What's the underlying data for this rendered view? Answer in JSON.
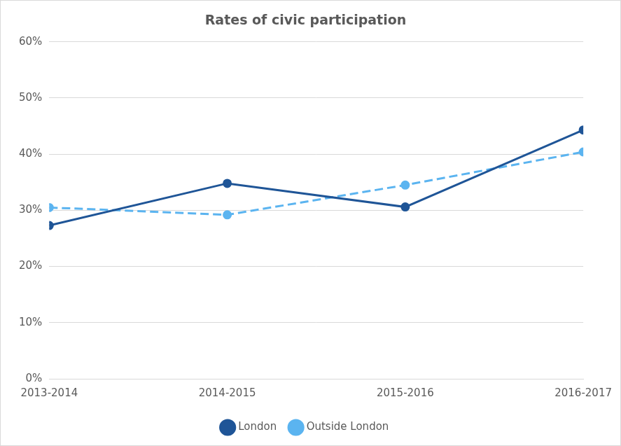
{
  "chart_data": {
    "type": "line",
    "title": "Rates of civic participation",
    "categories": [
      "2013-2014",
      "2014-2015",
      "2015-2016",
      "2016-2017"
    ],
    "series": [
      {
        "name": "London",
        "color": "#1f5597",
        "marker": "circle",
        "line_style": "solid",
        "values": [
          27.3,
          34.8,
          30.6,
          44.3
        ]
      },
      {
        "name": "Outside London",
        "color": "#5bb4f0",
        "marker": "circle",
        "line_style": "dashed",
        "values": [
          30.5,
          29.2,
          34.5,
          40.4
        ]
      }
    ],
    "ylim": [
      0,
      60
    ],
    "yticks": [
      {
        "value": 0,
        "label": "0%"
      },
      {
        "value": 10,
        "label": "10%"
      },
      {
        "value": 20,
        "label": "20%"
      },
      {
        "value": 30,
        "label": "30%"
      },
      {
        "value": 40,
        "label": "40%"
      },
      {
        "value": 50,
        "label": "50%"
      },
      {
        "value": 60,
        "label": "60%"
      }
    ],
    "grid": true,
    "legend": "bottom"
  }
}
